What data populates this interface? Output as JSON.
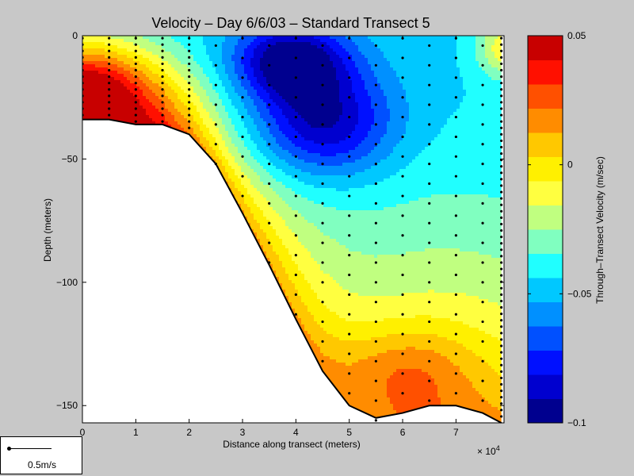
{
  "chart_data": {
    "type": "heatmap",
    "title": "Velocity – Day 6/6/03 – Standard Transect 5",
    "xlabel": "Distance along transect (meters)",
    "ylabel": "Depth (meters)",
    "x_exponent_label": "× 10",
    "x_exponent_power": "4",
    "xlim": [
      0,
      7.9
    ],
    "ylim": [
      -157,
      0
    ],
    "x_ticks": [
      0,
      1,
      2,
      3,
      4,
      5,
      6,
      7
    ],
    "y_ticks": [
      0,
      -50,
      -100,
      -150
    ],
    "colorbar": {
      "label": "Through–Transect Velocity (m/sec)",
      "range": [
        -0.1,
        0.05
      ],
      "ticks": [
        0.05,
        0,
        -0.05,
        -0.1
      ],
      "tick_labels": [
        "0.05",
        "0",
        "−0.05",
        "−0.1"
      ],
      "levels": 15,
      "colors": [
        "#00008f",
        "#0000cf",
        "#0010ff",
        "#0050ff",
        "#0090ff",
        "#00c8ff",
        "#20ffff",
        "#80ffc0",
        "#c0ff80",
        "#ffff40",
        "#fff000",
        "#ffc800",
        "#ff8c00",
        "#ff5000",
        "#ff1000",
        "#c80000"
      ]
    },
    "bottom_profile": {
      "x": [
        0,
        0.5,
        1.0,
        1.5,
        2.0,
        2.5,
        3.0,
        3.5,
        4.0,
        4.5,
        5.0,
        5.5,
        6.0,
        6.5,
        7.0,
        7.5,
        7.85
      ],
      "depth": [
        -34,
        -34,
        -36,
        -36,
        -40,
        -52,
        -72,
        -93,
        -115,
        -136,
        -150,
        -155,
        -153,
        -150,
        -150,
        -153,
        -157
      ]
    },
    "stations_x": [
      0,
      0.5,
      1.0,
      1.5,
      2.0,
      2.5,
      3.0,
      3.5,
      4.0,
      4.5,
      5.0,
      5.5,
      6.0,
      6.5,
      7.0,
      7.5,
      7.85
    ],
    "velocity_regions": [
      {
        "name": "core-min",
        "value": -0.095,
        "x": 4.0,
        "depth": -10
      },
      {
        "name": "lower-core",
        "value": -0.09,
        "x": 4.1,
        "depth": -32
      },
      {
        "name": "near-bottom-max",
        "value": 0.005,
        "x": 5.7,
        "depth": -140
      },
      {
        "name": "surface-max",
        "value": 0.045,
        "x": 0.5,
        "depth": -20
      }
    ]
  },
  "legend_box": {
    "scale_label": "0.5m/s"
  }
}
